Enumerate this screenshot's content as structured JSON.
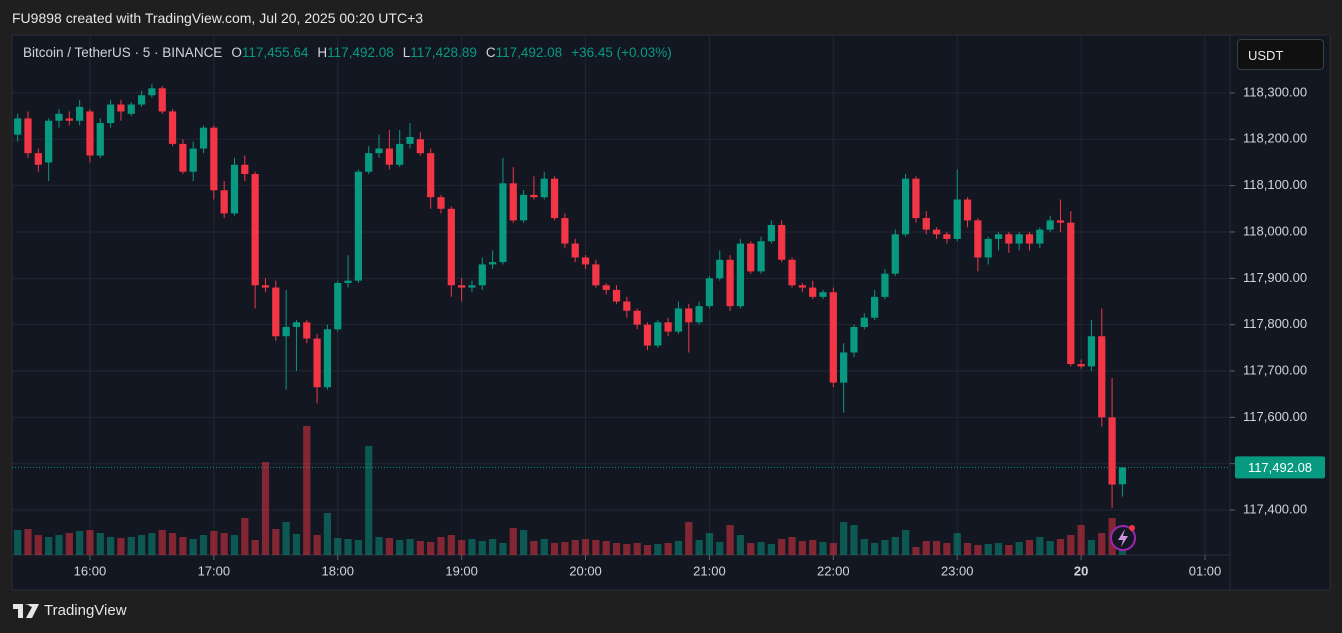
{
  "header": "FU9898 created with TradingView.com, Jul 20, 2025 00:20 UTC+3",
  "footer": "TradingView",
  "chart_data": {
    "type": "candlestick",
    "title": "Bitcoin / TetherUS · 5 · BINANCE",
    "legend": [
      {
        "label": "O",
        "value": "117,455.64"
      },
      {
        "label": "H",
        "value": "117,492.08"
      },
      {
        "label": "L",
        "value": "117,428.89"
      },
      {
        "label": "C",
        "value": "117,492.08"
      }
    ],
    "change": "+36.45 (+0.03%)",
    "currency": "USDT",
    "last_price": "117,492.08",
    "up_color": "#089981",
    "down_color": "#f23645",
    "grid": true,
    "xlim": [
      0.45,
      118.42
    ],
    "xticks": [
      {
        "value": 8,
        "label": "16:00"
      },
      {
        "value": 20,
        "label": "17:00"
      },
      {
        "value": 32,
        "label": "18:00"
      },
      {
        "value": 44,
        "label": "19:00"
      },
      {
        "value": 56,
        "label": "20:00"
      },
      {
        "value": 68,
        "label": "21:00"
      },
      {
        "value": 80,
        "label": "22:00"
      },
      {
        "value": 92,
        "label": "23:00"
      },
      {
        "value": 104,
        "label": "20"
      },
      {
        "value": 116,
        "label": "01:00"
      }
    ],
    "ylim": [
      117303,
      118425
    ],
    "yticks": [
      {
        "value": 117400,
        "label": "117,400.00"
      },
      {
        "value": 117500,
        "label": "117,500.00"
      },
      {
        "value": 117600,
        "label": "117,600.00"
      },
      {
        "value": 117700,
        "label": "117,700.00"
      },
      {
        "value": 117800,
        "label": "117,800.00"
      },
      {
        "value": 117900,
        "label": "117,900.00"
      },
      {
        "value": 118000,
        "label": "118,000.00"
      },
      {
        "value": 118100,
        "label": "118,100.00"
      },
      {
        "value": 118200,
        "label": "118,200.00"
      },
      {
        "value": 118300,
        "label": "118,300.00"
      }
    ],
    "volume_lim": [
      0,
      520
    ],
    "open": [
      118260,
      118210,
      118245,
      118170,
      118150,
      118240,
      118245,
      118240,
      118260,
      118165,
      118235,
      118275,
      118255,
      118275,
      118295,
      118310,
      118260,
      118190,
      118130,
      118180,
      118225,
      118090,
      118040,
      118145,
      118125,
      117885,
      117880,
      117775,
      117795,
      117805,
      117770,
      117665,
      117790,
      117890,
      117895,
      118130,
      118170,
      118180,
      118145,
      118190,
      118200,
      118170,
      118075,
      118050,
      117885,
      117880,
      117885,
      117930,
      117935,
      118105,
      118025,
      118080,
      118075,
      118115,
      118030,
      117975,
      117945,
      117930,
      117885,
      117875,
      117850,
      117830,
      117800,
      117755,
      117805,
      117785,
      117835,
      117805,
      117840,
      117900,
      117940,
      117840,
      117975,
      117915,
      117980,
      118015,
      117940,
      117885,
      117880,
      117860,
      117870,
      117675,
      117740,
      117795,
      117815,
      117860,
      117910,
      117995,
      118115,
      118030,
      118005,
      117995,
      117985,
      118070,
      118025,
      117945,
      117985,
      117995,
      117975,
      117995,
      117975,
      118005,
      118025,
      118020,
      117715,
      117710,
      117775,
      117600,
      117455.64
    ],
    "high": [
      118320,
      118255,
      118260,
      118180,
      118245,
      118265,
      118260,
      118285,
      118265,
      118245,
      118285,
      118285,
      118280,
      118305,
      118320,
      118315,
      118265,
      118200,
      118195,
      118230,
      118230,
      118110,
      118160,
      118165,
      118130,
      117900,
      117895,
      117875,
      117810,
      117810,
      117780,
      117800,
      117895,
      117950,
      118135,
      118185,
      118210,
      118220,
      118220,
      118235,
      118215,
      118180,
      118080,
      118055,
      117900,
      117895,
      117945,
      117960,
      118160,
      118140,
      118090,
      118120,
      118130,
      118120,
      118040,
      117985,
      117950,
      117940,
      117890,
      117885,
      117860,
      117835,
      117805,
      117810,
      117815,
      117850,
      117845,
      117850,
      117905,
      117960,
      117950,
      117985,
      117980,
      117990,
      118025,
      118025,
      117945,
      117890,
      117895,
      117875,
      117880,
      117760,
      117800,
      117825,
      117875,
      117920,
      118005,
      118125,
      118120,
      118045,
      118010,
      118000,
      118135,
      118075,
      118030,
      117990,
      118000,
      118000,
      118000,
      118000,
      118010,
      118035,
      118070,
      118045,
      117725,
      117810,
      117835,
      117685,
      117492.08
    ],
    "low": [
      118200,
      118195,
      118160,
      118130,
      118110,
      118225,
      118230,
      118230,
      118150,
      118160,
      118225,
      118240,
      118250,
      118270,
      118290,
      118255,
      118185,
      118125,
      118110,
      118170,
      118070,
      118030,
      118035,
      118110,
      117835,
      117870,
      117765,
      117660,
      117700,
      117760,
      117630,
      117660,
      117785,
      117880,
      117890,
      118125,
      118160,
      118135,
      118140,
      118180,
      118165,
      118050,
      118040,
      117860,
      117850,
      117870,
      117875,
      117920,
      117930,
      118020,
      118020,
      118070,
      118070,
      118025,
      117965,
      117935,
      117920,
      117880,
      117865,
      117845,
      117815,
      117790,
      117745,
      117750,
      117775,
      117780,
      117740,
      117800,
      117835,
      117895,
      117830,
      117835,
      117910,
      117910,
      117975,
      117935,
      117880,
      117870,
      117855,
      117855,
      117665,
      117610,
      117730,
      117790,
      117810,
      117855,
      117905,
      117990,
      118020,
      117995,
      117985,
      117975,
      117980,
      118010,
      117915,
      117930,
      117960,
      117955,
      117960,
      117960,
      117965,
      118000,
      118000,
      117710,
      117705,
      117700,
      117580,
      117405,
      117428.89
    ],
    "close": [
      118210,
      118245,
      118170,
      118145,
      118240,
      118255,
      118240,
      118270,
      118165,
      118235,
      118275,
      118260,
      118275,
      118295,
      118310,
      118260,
      118190,
      118130,
      118180,
      118225,
      118090,
      118040,
      118145,
      118125,
      117885,
      117880,
      117775,
      117795,
      117805,
      117770,
      117665,
      117790,
      117890,
      117895,
      118130,
      118170,
      118180,
      118145,
      118190,
      118205,
      118170,
      118075,
      118050,
      117885,
      117880,
      117885,
      117930,
      117935,
      118105,
      118025,
      118080,
      118075,
      118115,
      118030,
      117975,
      117945,
      117930,
      117885,
      117875,
      117850,
      117830,
      117800,
      117755,
      117805,
      117785,
      117835,
      117805,
      117840,
      117900,
      117940,
      117840,
      117975,
      117915,
      117980,
      118015,
      117940,
      117885,
      117880,
      117860,
      117870,
      117675,
      117740,
      117795,
      117815,
      117860,
      117910,
      117995,
      118115,
      118030,
      118005,
      117995,
      117985,
      118070,
      118025,
      117945,
      117985,
      117995,
      117975,
      117995,
      117975,
      118005,
      118025,
      118020,
      117715,
      117710,
      117775,
      117600,
      117455,
      117492.08
    ],
    "volume": [
      25,
      25,
      26,
      20,
      18,
      20,
      22,
      24,
      25,
      22,
      18,
      17,
      18,
      20,
      22,
      25,
      22,
      18,
      16,
      20,
      24,
      22,
      20,
      37,
      15,
      93,
      26,
      33,
      21,
      129,
      20,
      42,
      17,
      16,
      15,
      109,
      18,
      17,
      15,
      16,
      14,
      13,
      18,
      20,
      15,
      16,
      14,
      16,
      12,
      27,
      25,
      14,
      16,
      12,
      13,
      15,
      16,
      15,
      14,
      12,
      11,
      12,
      10,
      11,
      12,
      14,
      33,
      15,
      22,
      13,
      30,
      20,
      12,
      13,
      11,
      16,
      18,
      14,
      15,
      13,
      12,
      33,
      30,
      16,
      12,
      15,
      18,
      25,
      8,
      14,
      14,
      12,
      22,
      12,
      10,
      11,
      12,
      10,
      13,
      15,
      18,
      14,
      16,
      20,
      30,
      15,
      22,
      37,
      12
    ]
  }
}
